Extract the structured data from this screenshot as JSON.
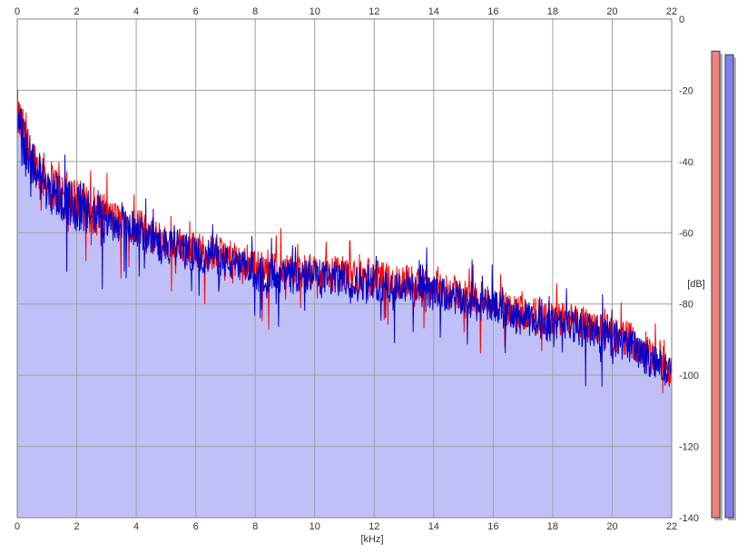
{
  "chart_data": {
    "type": "line",
    "title": "",
    "xlabel": "[kHz]",
    "ylabel": "[dB]",
    "xlim": [
      0,
      22
    ],
    "ylim": [
      -140,
      0
    ],
    "x_ticks": [
      0,
      2,
      4,
      6,
      8,
      10,
      12,
      14,
      16,
      18,
      20,
      22
    ],
    "y_ticks": [
      0,
      -20,
      -40,
      -60,
      -80,
      -100,
      -120,
      -140
    ],
    "grid": true,
    "legend": "none",
    "envelope": {
      "x": [
        0,
        0.25,
        0.5,
        0.75,
        1,
        1.5,
        2,
        2.5,
        3,
        3.5,
        4,
        4.5,
        5,
        5.5,
        6,
        6.5,
        7,
        7.5,
        8,
        8.5,
        9,
        9.5,
        10,
        10.5,
        11,
        11.5,
        12,
        12.5,
        13,
        13.5,
        14,
        14.5,
        15,
        15.5,
        16,
        16.5,
        17,
        17.5,
        18,
        18.5,
        19,
        19.5,
        20,
        20.5,
        21,
        21.5,
        22
      ],
      "y": [
        -28,
        -35,
        -40,
        -44,
        -47,
        -50,
        -53,
        -55,
        -57,
        -58,
        -59,
        -62,
        -64,
        -65,
        -66,
        -67,
        -68,
        -70,
        -71,
        -72,
        -72,
        -73,
        -72,
        -73,
        -73,
        -74,
        -74,
        -75,
        -75,
        -76,
        -77,
        -78,
        -79,
        -80,
        -81,
        -83,
        -84,
        -85,
        -86,
        -86,
        -87,
        -88,
        -90,
        -91,
        -94,
        -97,
        -100
      ]
    },
    "series": [
      {
        "name": "",
        "color": "#ff0000",
        "peak_level": -9
      },
      {
        "name": "",
        "color": "#0000cc",
        "peak_level": -10
      }
    ],
    "fill_color": "#c0c0f8",
    "level_meters": [
      {
        "color": "#f08080",
        "level": -9
      },
      {
        "color": "#8080f0",
        "level": -10
      }
    ]
  }
}
